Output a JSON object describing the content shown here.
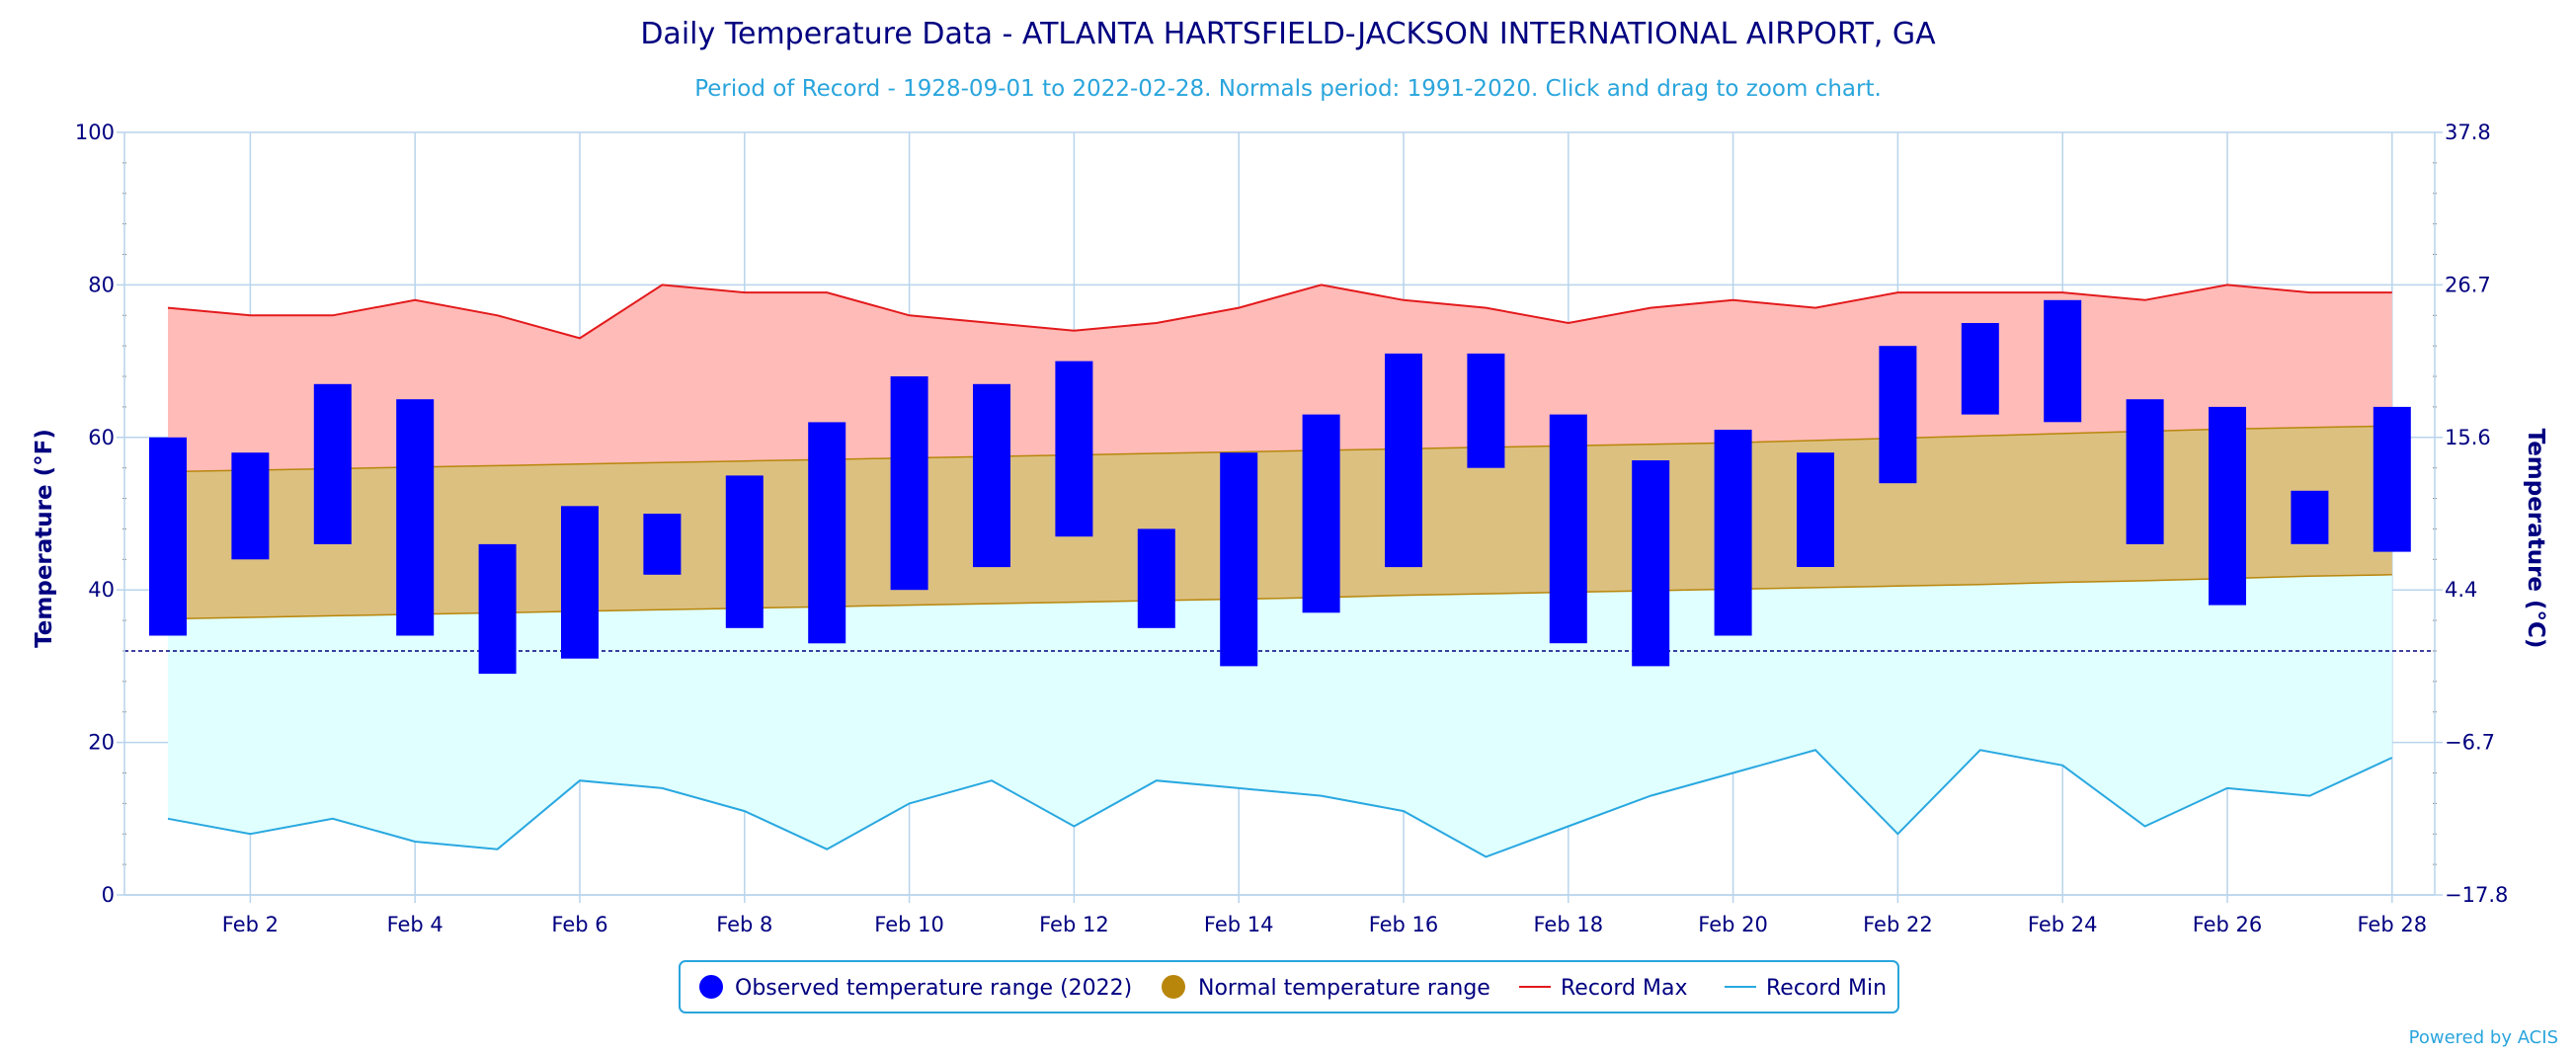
{
  "chart_data": {
    "type": "bar",
    "title": "Daily Temperature Data - ATLANTA HARTSFIELD-JACKSON INTERNATIONAL AIRPORT, GA",
    "subtitle": "Period of Record - 1928-09-01 to 2022-02-28. Normals period: 1991-2020. Click and drag to zoom chart.",
    "ylabel": "Temperature (°F)",
    "ylabel_right": "Temperature (°C)",
    "ylim": [
      0,
      100
    ],
    "yticks": [
      "0",
      "20",
      "40",
      "60",
      "80",
      "100"
    ],
    "yticks_right": [
      "−17.8",
      "−6.7",
      "4.4",
      "15.6",
      "26.7",
      "37.8"
    ],
    "x": [
      "Feb 1",
      "Feb 2",
      "Feb 3",
      "Feb 4",
      "Feb 5",
      "Feb 6",
      "Feb 7",
      "Feb 8",
      "Feb 9",
      "Feb 10",
      "Feb 11",
      "Feb 12",
      "Feb 13",
      "Feb 14",
      "Feb 15",
      "Feb 16",
      "Feb 17",
      "Feb 18",
      "Feb 19",
      "Feb 20",
      "Feb 21",
      "Feb 22",
      "Feb 23",
      "Feb 24",
      "Feb 25",
      "Feb 26",
      "Feb 27",
      "Feb 28"
    ],
    "xtick_labels": [
      "Feb 2",
      "Feb 4",
      "Feb 6",
      "Feb 8",
      "Feb 10",
      "Feb 12",
      "Feb 14",
      "Feb 16",
      "Feb 18",
      "Feb 20",
      "Feb 22",
      "Feb 24",
      "Feb 26",
      "Feb 28"
    ],
    "freezing_line": 32,
    "grid": true,
    "legend_position": "bottom-center",
    "series": [
      {
        "name": "Observed temperature range (2022)",
        "color": "#0000ff",
        "low": [
          34,
          44,
          46,
          34,
          29,
          31,
          42,
          35,
          33,
          40,
          43,
          47,
          35,
          30,
          37,
          43,
          56,
          33,
          30,
          34,
          43,
          54,
          63,
          62,
          46,
          38,
          46,
          45
        ],
        "high": [
          60,
          58,
          67,
          65,
          46,
          51,
          50,
          55,
          62,
          68,
          67,
          70,
          48,
          58,
          63,
          71,
          71,
          63,
          57,
          61,
          58,
          72,
          75,
          78,
          65,
          64,
          53,
          64
        ]
      },
      {
        "name": "Normal temperature range",
        "color": "#b8860b",
        "low": [
          36.2,
          36.4,
          36.6,
          36.8,
          37.0,
          37.2,
          37.4,
          37.6,
          37.8,
          38.0,
          38.2,
          38.4,
          38.6,
          38.8,
          39.0,
          39.3,
          39.5,
          39.7,
          39.9,
          40.1,
          40.3,
          40.5,
          40.7,
          41.0,
          41.2,
          41.5,
          41.8,
          42.0
        ],
        "high": [
          55.5,
          55.7,
          55.9,
          56.1,
          56.3,
          56.5,
          56.7,
          56.9,
          57.1,
          57.3,
          57.5,
          57.7,
          57.9,
          58.1,
          58.3,
          58.5,
          58.7,
          58.9,
          59.1,
          59.3,
          59.6,
          59.9,
          60.2,
          60.5,
          60.8,
          61.1,
          61.3,
          61.5
        ]
      },
      {
        "name": "Record Max",
        "color": "#e31a1c",
        "values": [
          77,
          76,
          76,
          78,
          76,
          73,
          80,
          79,
          79,
          76,
          75,
          74,
          75,
          77,
          80,
          78,
          77,
          75,
          77,
          78,
          77,
          79,
          79,
          79,
          78,
          80,
          79,
          79
        ]
      },
      {
        "name": "Record Min",
        "color": "#29a8e0",
        "values": [
          10,
          8,
          10,
          7,
          6,
          15,
          14,
          11,
          6,
          12,
          15,
          9,
          15,
          14,
          13,
          11,
          5,
          9,
          13,
          16,
          19,
          8,
          19,
          17,
          9,
          14,
          13,
          18
        ]
      }
    ],
    "credit": "Powered by ACIS"
  }
}
